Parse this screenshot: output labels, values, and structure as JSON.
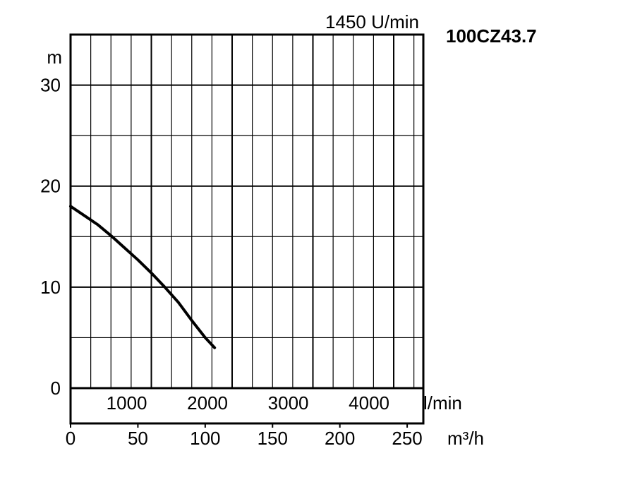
{
  "header": {
    "speed": "1450 U/min",
    "model": "100CZ43.7"
  },
  "chart_data": {
    "type": "line",
    "ylabel": "m",
    "xlabel_secondary": "l/min",
    "xlabel": "m³/h",
    "ylim": [
      0,
      35
    ],
    "xlim": [
      0,
      262
    ],
    "y_ticks": [
      {
        "v": 0,
        "label": "0"
      },
      {
        "v": 10,
        "label": "10"
      },
      {
        "v": 20,
        "label": "20"
      },
      {
        "v": 30,
        "label": "30"
      }
    ],
    "x_ticks_lpm": [
      {
        "v": 1000,
        "label": "1000"
      },
      {
        "v": 2000,
        "label": "2000"
      },
      {
        "v": 3000,
        "label": "3000"
      },
      {
        "v": 4000,
        "label": "4000"
      }
    ],
    "x_ticks_m3h": [
      {
        "v": 0,
        "label": "0"
      },
      {
        "v": 50,
        "label": "50"
      },
      {
        "v": 100,
        "label": "100"
      },
      {
        "v": 150,
        "label": "150"
      },
      {
        "v": 200,
        "label": "200"
      },
      {
        "v": 250,
        "label": "250"
      }
    ],
    "grid": true,
    "series": [
      {
        "x": [
          0,
          10,
          20,
          30,
          40,
          50,
          60,
          70,
          80,
          90,
          100,
          107
        ],
        "y": [
          18.0,
          17.1,
          16.2,
          15.1,
          13.9,
          12.7,
          11.4,
          10.0,
          8.5,
          6.7,
          5.0,
          4.0
        ]
      }
    ]
  }
}
